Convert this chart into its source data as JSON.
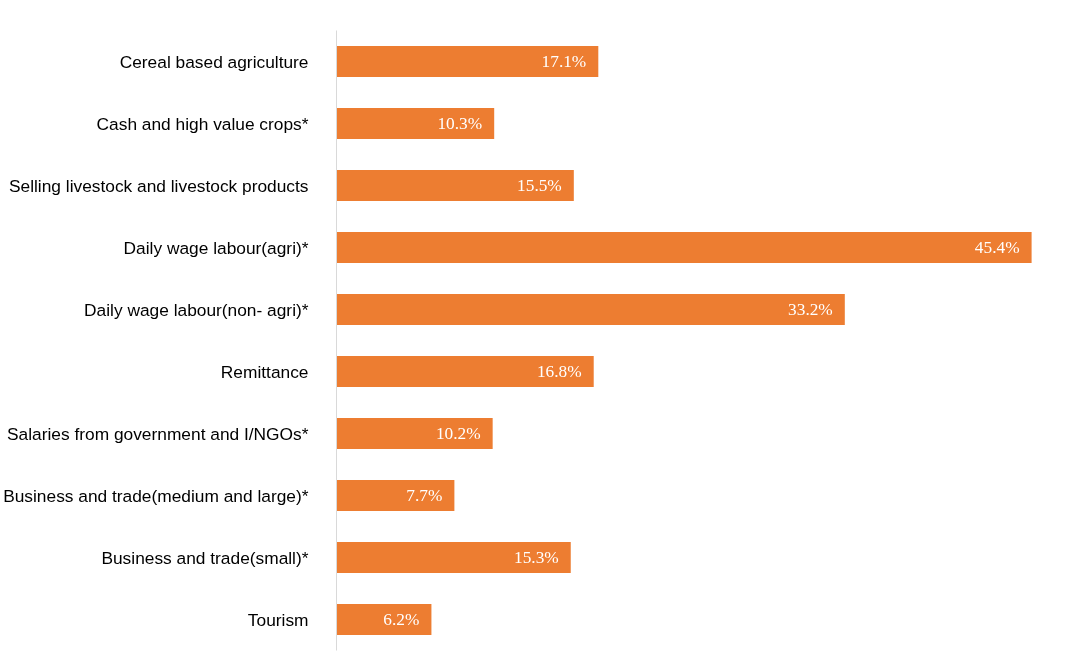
{
  "chart_data": {
    "type": "bar",
    "orientation": "horizontal",
    "categories": [
      "Cereal based agriculture",
      "Cash and high value crops*",
      "Selling livestock and livestock products",
      "Daily wage labour(agri)*",
      "Daily wage labour(non- agri)*",
      "Remittance",
      "Salaries from government and I/NGOs*",
      "Business and trade(medium and large)*",
      "Business and trade(small)*",
      "Tourism"
    ],
    "values": [
      17.1,
      10.3,
      15.5,
      45.4,
      33.2,
      16.8,
      10.2,
      7.7,
      15.3,
      6.2
    ],
    "value_labels": [
      "17.1%",
      "10.3%",
      "15.5%",
      "45.4%",
      "33.2%",
      "16.8%",
      "10.2%",
      "7.7%",
      "15.3%",
      "6.2%"
    ],
    "color": "#ed7d31",
    "tick_labels": "y",
    "grid": false
  }
}
